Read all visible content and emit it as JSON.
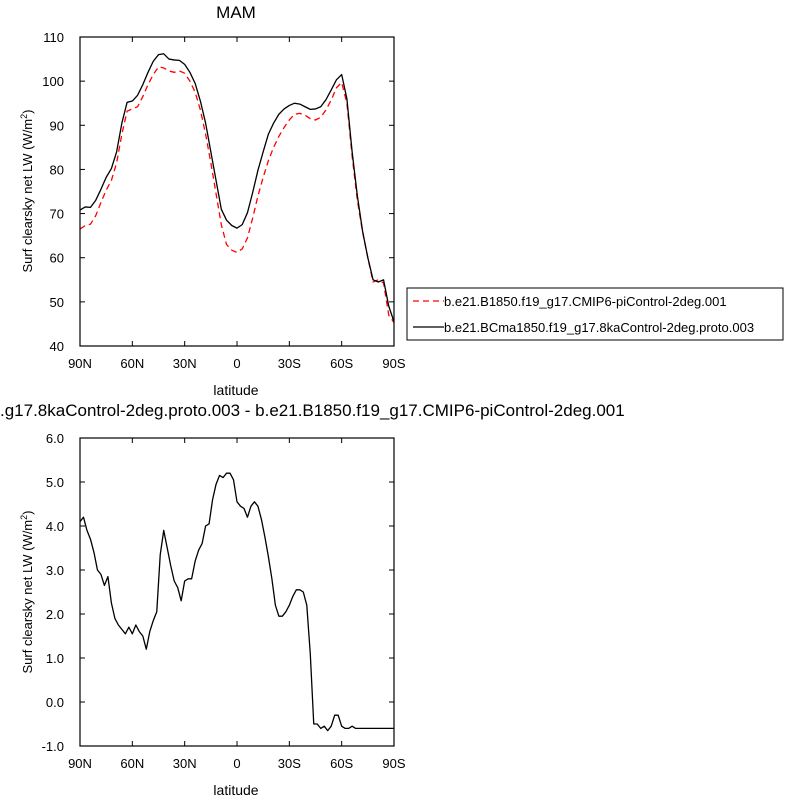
{
  "chart_data": [
    {
      "type": "line",
      "title": "MAM",
      "xlabel": "latitude",
      "ylabel": "Surf clearsky net LW (W/m²)",
      "ylabel_main": "Surf clearsky net LW (W/m",
      "ylabel_sup": "2",
      "ylabel_end": ")",
      "xlim": [
        90,
        -90
      ],
      "ylim": [
        40,
        110
      ],
      "x_ticks": [
        90,
        60,
        30,
        0,
        -30,
        -60,
        -90
      ],
      "x_tick_labels": [
        "90N",
        "60N",
        "30N",
        "0",
        "30S",
        "60S",
        "90S"
      ],
      "y_ticks": [
        40,
        50,
        60,
        70,
        80,
        90,
        100,
        110
      ],
      "y_tick_labels": [
        "40",
        "50",
        "60",
        "70",
        "80",
        "90",
        "100",
        "110"
      ],
      "legend": "right",
      "series": [
        {
          "name": "b.e21.B1850.f19_g17.CMIP6-piControl-2deg.001",
          "color": "#ff0000",
          "dash": "dashed",
          "x": [
            90,
            87,
            84,
            81,
            78,
            75,
            72,
            69,
            66,
            63,
            60,
            57,
            54,
            51,
            48,
            45,
            42,
            39,
            36,
            33,
            30,
            27,
            24,
            21,
            18,
            15,
            12,
            9,
            6,
            3,
            0,
            -3,
            -6,
            -9,
            -12,
            -15,
            -18,
            -21,
            -24,
            -27,
            -30,
            -33,
            -36,
            -39,
            -42,
            -45,
            -48,
            -51,
            -54,
            -57,
            -60,
            -63,
            -66,
            -69,
            -72,
            -75,
            -78,
            -81,
            -84,
            -87,
            -90
          ],
          "values": [
            66.5,
            67.3,
            67.6,
            69.5,
            72.5,
            75.3,
            77.5,
            81.5,
            88,
            93.2,
            93.7,
            94.2,
            96.5,
            99.2,
            101.5,
            103.2,
            103,
            102.3,
            102,
            102.3,
            101.8,
            100,
            97.5,
            93.5,
            88,
            81.5,
            74.5,
            67.5,
            63,
            61.7,
            61.2,
            62,
            64.5,
            69,
            74,
            78.2,
            82,
            85,
            87.5,
            89.5,
            91.2,
            92.5,
            92.7,
            92.3,
            91.5,
            91.2,
            91.8,
            93.5,
            95.7,
            98.5,
            99.7,
            95,
            83,
            73,
            65.8,
            60,
            54.5,
            55,
            54.3,
            47,
            45.3
          ]
        },
        {
          "name": "b.e21.BCma1850.f19_g17.8kaControl-2deg.proto.003",
          "color": "#000000",
          "dash": "solid",
          "x": [
            90,
            87,
            84,
            81,
            78,
            75,
            72,
            69,
            66,
            63,
            60,
            57,
            54,
            51,
            48,
            45,
            42,
            39,
            36,
            33,
            30,
            27,
            24,
            21,
            18,
            15,
            12,
            9,
            6,
            3,
            0,
            -3,
            -6,
            -9,
            -12,
            -15,
            -18,
            -21,
            -24,
            -27,
            -30,
            -33,
            -36,
            -39,
            -42,
            -45,
            -48,
            -51,
            -54,
            -57,
            -60,
            -63,
            -66,
            -69,
            -72,
            -75,
            -78,
            -81,
            -84,
            -87,
            -90
          ],
          "values": [
            70.8,
            71.5,
            71.4,
            73,
            75.5,
            78.2,
            80.2,
            84,
            90.5,
            95.2,
            95.5,
            96.8,
            99.2,
            102,
            104.5,
            106,
            106.2,
            105,
            104.8,
            104.7,
            103.8,
            102,
            99.5,
            95.5,
            90.5,
            84,
            77.5,
            71,
            68.5,
            67.3,
            66.7,
            67.5,
            70.2,
            74.8,
            79.8,
            84,
            88,
            90.5,
            92.5,
            93.7,
            94.5,
            95,
            94.8,
            94.2,
            93.6,
            93.7,
            94.2,
            95.8,
            98,
            100.3,
            101.5,
            96,
            84,
            74,
            66,
            60,
            55,
            54.5,
            55,
            49,
            45.5
          ]
        }
      ]
    },
    {
      "type": "line",
      "title": ".g17.8kaControl-2deg.proto.003 - b.e21.B1850.f19_g17.CMIP6-piControl-2deg.001",
      "xlabel": "latitude",
      "ylabel": "Surf clearsky net LW (W/m²)",
      "ylabel_main": "Surf clearsky net LW (W/m",
      "ylabel_sup": "2",
      "ylabel_end": ")",
      "xlim": [
        90,
        -90
      ],
      "ylim": [
        -1,
        6
      ],
      "x_ticks": [
        90,
        60,
        30,
        0,
        -30,
        -60,
        -90
      ],
      "x_tick_labels": [
        "90N",
        "60N",
        "30N",
        "0",
        "30S",
        "60S",
        "90S"
      ],
      "y_ticks": [
        -1,
        0,
        1,
        2,
        3,
        4,
        5,
        6
      ],
      "y_tick_labels": [
        "-1.0",
        "0.0",
        "1.0",
        "2.0",
        "3.0",
        "4.0",
        "5.0",
        "6.0"
      ],
      "series": [
        {
          "color": "#000000",
          "dash": "solid",
          "x": [
            90,
            88,
            86,
            84,
            82,
            80,
            78,
            76,
            74,
            72,
            70,
            68,
            66,
            64,
            62,
            60,
            58,
            56,
            54,
            52,
            50,
            48,
            46,
            44,
            42,
            40,
            38,
            36,
            34,
            32,
            30,
            28,
            26,
            24,
            22,
            20,
            18,
            16,
            14,
            12,
            10,
            8,
            6,
            4,
            2,
            0,
            -2,
            -4,
            -6,
            -8,
            -10,
            -12,
            -14,
            -16,
            -18,
            -20,
            -22,
            -24,
            -26,
            -28,
            -30,
            -32,
            -34,
            -36,
            -38,
            -40,
            -42,
            -44,
            -46,
            -48,
            -50,
            -52,
            -54,
            -56,
            -58,
            -60,
            -62,
            -64,
            -66,
            -68,
            -70,
            -72,
            -74,
            -76,
            -78,
            -80,
            -82,
            -84,
            -86,
            -88,
            -90
          ],
          "values": [
            4.1,
            4.2,
            3.9,
            3.7,
            3.4,
            3.0,
            2.9,
            2.65,
            2.85,
            2.25,
            1.9,
            1.75,
            1.65,
            1.55,
            1.7,
            1.55,
            1.75,
            1.6,
            1.5,
            1.2,
            1.6,
            1.85,
            2.05,
            3.35,
            3.9,
            3.5,
            3.1,
            2.75,
            2.6,
            2.3,
            2.75,
            2.8,
            2.8,
            3.2,
            3.45,
            3.6,
            4.0,
            4.05,
            4.6,
            4.95,
            5.15,
            5.1,
            5.2,
            5.2,
            5.05,
            4.55,
            4.45,
            4.4,
            4.2,
            4.45,
            4.55,
            4.45,
            4.15,
            3.75,
            3.3,
            2.8,
            2.2,
            1.95,
            1.95,
            2.05,
            2.2,
            2.4,
            2.55,
            2.55,
            2.5,
            2.2,
            1.1,
            -0.5,
            -0.5,
            -0.6,
            -0.55,
            -0.65,
            -0.55,
            -0.3,
            -0.3,
            -0.55,
            -0.6,
            -0.6,
            -0.55,
            -0.6,
            -0.6,
            -0.6,
            -0.6,
            -0.6,
            -0.6,
            -0.6,
            -0.6,
            -0.6,
            -0.6,
            -0.6,
            -0.6
          ]
        }
      ]
    }
  ]
}
